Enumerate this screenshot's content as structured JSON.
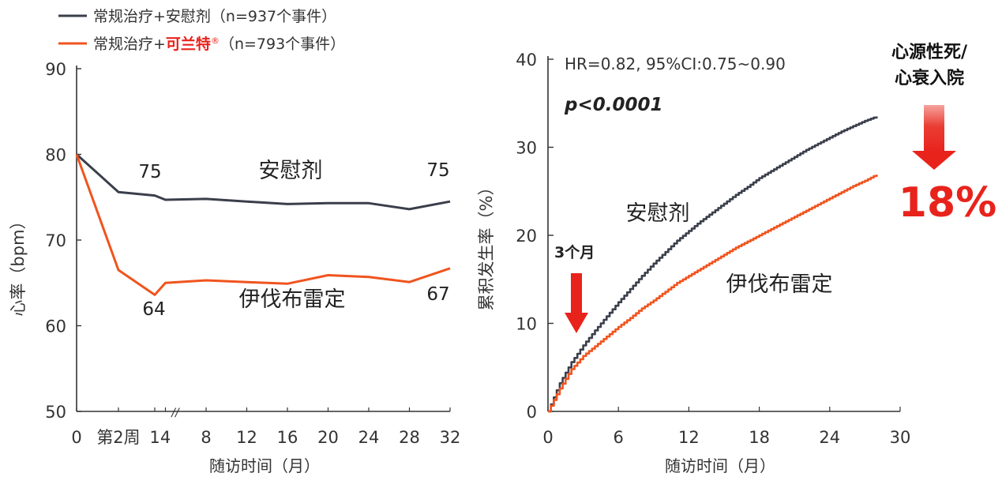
{
  "colors": {
    "placebo": "#3a3f4b",
    "ivabradine": "#f0541e",
    "highlight_red": "#e8231c",
    "axis": "#333333"
  },
  "legend": {
    "placebo_label": "常规治疗+安慰剂（n=937个事件）",
    "ivabradine_prefix": "常规治疗+",
    "ivabradine_brand": "可兰特",
    "ivabradine_reg": "®",
    "ivabradine_suffix": "（n=793个事件）"
  },
  "chart_data": [
    {
      "type": "line",
      "xlabel": "随访时间（月）",
      "ylabel": "心率（bpm）",
      "ylim": [
        50,
        90
      ],
      "yticks": [
        "50",
        "60",
        "70",
        "80",
        "90"
      ],
      "xticks": [
        "0",
        "第2周",
        "1",
        "4",
        "8",
        "12",
        "16",
        "20",
        "24",
        "28",
        "32"
      ],
      "x_break_marker": "//",
      "series": [
        {
          "name": "安慰剂",
          "color": "#3a3f4b",
          "x": [
            "0",
            "第2周",
            "1",
            "4",
            "8",
            "12",
            "16",
            "20",
            "24",
            "28",
            "32"
          ],
          "values": [
            80,
            75.6,
            75.2,
            74.7,
            74.8,
            74.5,
            74.2,
            74.3,
            74.3,
            73.6,
            74.5
          ]
        },
        {
          "name": "伊伐布雷定",
          "color": "#f0541e",
          "x": [
            "0",
            "第2周",
            "1",
            "4",
            "8",
            "12",
            "16",
            "20",
            "24",
            "28",
            "32"
          ],
          "values": [
            80,
            66.5,
            63.6,
            65.0,
            65.3,
            65.1,
            64.9,
            65.9,
            65.7,
            65.1,
            66.7
          ]
        }
      ],
      "annotations": {
        "placebo_start": "75",
        "placebo_end": "75",
        "ivabradine_start": "64",
        "ivabradine_end": "67",
        "placebo_label": "安慰剂",
        "ivabradine_label": "伊伐布雷定"
      }
    },
    {
      "type": "line",
      "xlabel": "随访时间（月）",
      "ylabel": "累积发生率（%）",
      "xlim": [
        0,
        30
      ],
      "ylim": [
        0,
        40
      ],
      "xticks": [
        0,
        6,
        12,
        18,
        24,
        30
      ],
      "yticks": [
        0,
        10,
        20,
        30,
        40
      ],
      "series": [
        {
          "name": "安慰剂",
          "color": "#3a3f4b",
          "x": [
            0,
            1,
            2,
            3,
            4,
            5,
            6,
            7,
            8,
            9,
            10,
            11,
            12,
            13,
            14,
            15,
            16,
            17,
            18,
            19,
            20,
            21,
            22,
            23,
            24,
            25,
            26,
            27,
            28
          ],
          "values": [
            0,
            3.2,
            5.6,
            7.5,
            9.2,
            10.8,
            12.4,
            13.9,
            15.4,
            16.8,
            18.1,
            19.4,
            20.5,
            21.6,
            22.6,
            23.6,
            24.6,
            25.5,
            26.5,
            27.3,
            28.1,
            28.9,
            29.7,
            30.4,
            31.1,
            31.8,
            32.4,
            33.0,
            33.5
          ]
        },
        {
          "name": "伊伐布雷定",
          "color": "#f0541e",
          "x": [
            0,
            1,
            2,
            3,
            4,
            5,
            6,
            7,
            8,
            9,
            10,
            11,
            12,
            13,
            14,
            15,
            16,
            17,
            18,
            19,
            20,
            21,
            22,
            23,
            24,
            25,
            26,
            27,
            28
          ],
          "values": [
            0,
            2.6,
            4.8,
            6.3,
            7.4,
            8.5,
            9.6,
            10.6,
            11.7,
            12.6,
            13.6,
            14.6,
            15.4,
            16.2,
            17.0,
            17.8,
            18.6,
            19.3,
            20.0,
            20.7,
            21.4,
            22.1,
            22.8,
            23.5,
            24.2,
            24.9,
            25.6,
            26.2,
            26.9
          ]
        }
      ],
      "annotations": {
        "hr_text": "HR=0.82, 95%CI:0.75~0.90",
        "p_text": "p<0.0001",
        "three_month": "3个月",
        "placebo_label": "安慰剂",
        "ivabradine_label": "伊伐布雷定",
        "endpoint_line1": "心源性死/",
        "endpoint_line2": "心衰入院",
        "reduction": "18%"
      }
    }
  ]
}
